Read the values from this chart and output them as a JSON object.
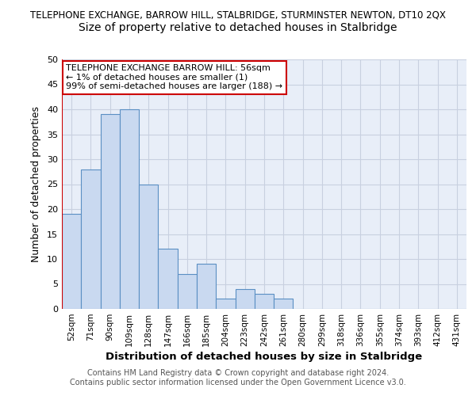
{
  "title_main": "TELEPHONE EXCHANGE, BARROW HILL, STALBRIDGE, STURMINSTER NEWTON, DT10 2QX",
  "title_sub": "Size of property relative to detached houses in Stalbridge",
  "xlabel": "Distribution of detached houses by size in Stalbridge",
  "ylabel": "Number of detached properties",
  "bar_labels": [
    "52sqm",
    "71sqm",
    "90sqm",
    "109sqm",
    "128sqm",
    "147sqm",
    "166sqm",
    "185sqm",
    "204sqm",
    "223sqm",
    "242sqm",
    "261sqm",
    "280sqm",
    "299sqm",
    "318sqm",
    "336sqm",
    "355sqm",
    "374sqm",
    "393sqm",
    "412sqm",
    "431sqm"
  ],
  "bar_values": [
    19,
    28,
    39,
    40,
    25,
    12,
    7,
    9,
    2,
    4,
    3,
    2,
    0,
    0,
    0,
    0,
    0,
    0,
    0,
    0,
    0
  ],
  "ylim": [
    0,
    50
  ],
  "yticks": [
    0,
    5,
    10,
    15,
    20,
    25,
    30,
    35,
    40,
    45,
    50
  ],
  "bar_color": "#c9d9f0",
  "bar_edge_color": "#5a8fc3",
  "highlight_line_color": "#cc0000",
  "annotation_box_text": "TELEPHONE EXCHANGE BARROW HILL: 56sqm\n← 1% of detached houses are smaller (1)\n99% of semi-detached houses are larger (188) →",
  "annotation_box_edge_color": "#cc0000",
  "footer_line1": "Contains HM Land Registry data © Crown copyright and database right 2024.",
  "footer_line2": "Contains public sector information licensed under the Open Government Licence v3.0.",
  "bg_color": "#ffffff",
  "plot_bg_color": "#e8eef8",
  "grid_color": "#c8d0e0",
  "title_main_fontsize": 8.5,
  "title_sub_fontsize": 10,
  "xlabel_fontsize": 9.5,
  "ylabel_fontsize": 9,
  "annotation_fontsize": 8,
  "footer_fontsize": 7,
  "tick_fontsize": 7.5,
  "ytick_fontsize": 8
}
